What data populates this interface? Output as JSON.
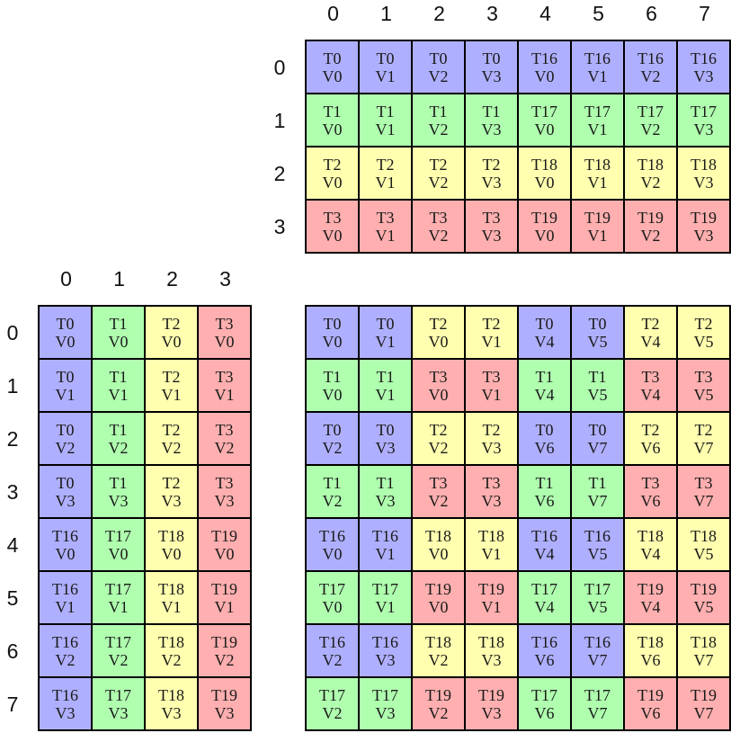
{
  "colors": {
    "blue": "#afafff",
    "green": "#afffaf",
    "yellow": "#ffffaf",
    "red": "#ffafaf",
    "border": "#000000",
    "cell_text": "#1a1a1a",
    "label_text": "#111111",
    "background": "#ffffff"
  },
  "grids": {
    "top_right": {
      "id": "top-right",
      "col_labels": [
        "0",
        "1",
        "2",
        "3",
        "4",
        "5",
        "6",
        "7"
      ],
      "row_labels": [
        "0",
        "1",
        "2",
        "3"
      ],
      "rows": [
        [
          {
            "t": "T0",
            "v": "V0",
            "c": "blue"
          },
          {
            "t": "T0",
            "v": "V1",
            "c": "blue"
          },
          {
            "t": "T0",
            "v": "V2",
            "c": "blue"
          },
          {
            "t": "T0",
            "v": "V3",
            "c": "blue"
          },
          {
            "t": "T16",
            "v": "V0",
            "c": "blue"
          },
          {
            "t": "T16",
            "v": "V1",
            "c": "blue"
          },
          {
            "t": "T16",
            "v": "V2",
            "c": "blue"
          },
          {
            "t": "T16",
            "v": "V3",
            "c": "blue"
          }
        ],
        [
          {
            "t": "T1",
            "v": "V0",
            "c": "green"
          },
          {
            "t": "T1",
            "v": "V1",
            "c": "green"
          },
          {
            "t": "T1",
            "v": "V2",
            "c": "green"
          },
          {
            "t": "T1",
            "v": "V3",
            "c": "green"
          },
          {
            "t": "T17",
            "v": "V0",
            "c": "green"
          },
          {
            "t": "T17",
            "v": "V1",
            "c": "green"
          },
          {
            "t": "T17",
            "v": "V2",
            "c": "green"
          },
          {
            "t": "T17",
            "v": "V3",
            "c": "green"
          }
        ],
        [
          {
            "t": "T2",
            "v": "V0",
            "c": "yellow"
          },
          {
            "t": "T2",
            "v": "V1",
            "c": "yellow"
          },
          {
            "t": "T2",
            "v": "V2",
            "c": "yellow"
          },
          {
            "t": "T2",
            "v": "V3",
            "c": "yellow"
          },
          {
            "t": "T18",
            "v": "V0",
            "c": "yellow"
          },
          {
            "t": "T18",
            "v": "V1",
            "c": "yellow"
          },
          {
            "t": "T18",
            "v": "V2",
            "c": "yellow"
          },
          {
            "t": "T18",
            "v": "V3",
            "c": "yellow"
          }
        ],
        [
          {
            "t": "T3",
            "v": "V0",
            "c": "red"
          },
          {
            "t": "T3",
            "v": "V1",
            "c": "red"
          },
          {
            "t": "T3",
            "v": "V2",
            "c": "red"
          },
          {
            "t": "T3",
            "v": "V3",
            "c": "red"
          },
          {
            "t": "T19",
            "v": "V0",
            "c": "red"
          },
          {
            "t": "T19",
            "v": "V1",
            "c": "red"
          },
          {
            "t": "T19",
            "v": "V2",
            "c": "red"
          },
          {
            "t": "T19",
            "v": "V3",
            "c": "red"
          }
        ]
      ]
    },
    "bottom_left": {
      "id": "bottom-left",
      "col_labels": [
        "0",
        "1",
        "2",
        "3"
      ],
      "row_labels": [
        "0",
        "1",
        "2",
        "3",
        "4",
        "5",
        "6",
        "7"
      ],
      "rows": [
        [
          {
            "t": "T0",
            "v": "V0",
            "c": "blue"
          },
          {
            "t": "T1",
            "v": "V0",
            "c": "green"
          },
          {
            "t": "T2",
            "v": "V0",
            "c": "yellow"
          },
          {
            "t": "T3",
            "v": "V0",
            "c": "red"
          }
        ],
        [
          {
            "t": "T0",
            "v": "V1",
            "c": "blue"
          },
          {
            "t": "T1",
            "v": "V1",
            "c": "green"
          },
          {
            "t": "T2",
            "v": "V1",
            "c": "yellow"
          },
          {
            "t": "T3",
            "v": "V1",
            "c": "red"
          }
        ],
        [
          {
            "t": "T0",
            "v": "V2",
            "c": "blue"
          },
          {
            "t": "T1",
            "v": "V2",
            "c": "green"
          },
          {
            "t": "T2",
            "v": "V2",
            "c": "yellow"
          },
          {
            "t": "T3",
            "v": "V2",
            "c": "red"
          }
        ],
        [
          {
            "t": "T0",
            "v": "V3",
            "c": "blue"
          },
          {
            "t": "T1",
            "v": "V3",
            "c": "green"
          },
          {
            "t": "T2",
            "v": "V3",
            "c": "yellow"
          },
          {
            "t": "T3",
            "v": "V3",
            "c": "red"
          }
        ],
        [
          {
            "t": "T16",
            "v": "V0",
            "c": "blue"
          },
          {
            "t": "T17",
            "v": "V0",
            "c": "green"
          },
          {
            "t": "T18",
            "v": "V0",
            "c": "yellow"
          },
          {
            "t": "T19",
            "v": "V0",
            "c": "red"
          }
        ],
        [
          {
            "t": "T16",
            "v": "V1",
            "c": "blue"
          },
          {
            "t": "T17",
            "v": "V1",
            "c": "green"
          },
          {
            "t": "T18",
            "v": "V1",
            "c": "yellow"
          },
          {
            "t": "T19",
            "v": "V1",
            "c": "red"
          }
        ],
        [
          {
            "t": "T16",
            "v": "V2",
            "c": "blue"
          },
          {
            "t": "T17",
            "v": "V2",
            "c": "green"
          },
          {
            "t": "T18",
            "v": "V2",
            "c": "yellow"
          },
          {
            "t": "T19",
            "v": "V2",
            "c": "red"
          }
        ],
        [
          {
            "t": "T16",
            "v": "V3",
            "c": "blue"
          },
          {
            "t": "T17",
            "v": "V3",
            "c": "green"
          },
          {
            "t": "T18",
            "v": "V3",
            "c": "yellow"
          },
          {
            "t": "T19",
            "v": "V3",
            "c": "red"
          }
        ]
      ]
    },
    "bottom_right": {
      "id": "bottom-right",
      "col_labels": [],
      "row_labels": [],
      "rows": [
        [
          {
            "t": "T0",
            "v": "V0",
            "c": "blue"
          },
          {
            "t": "T0",
            "v": "V1",
            "c": "blue"
          },
          {
            "t": "T2",
            "v": "V0",
            "c": "yellow"
          },
          {
            "t": "T2",
            "v": "V1",
            "c": "yellow"
          },
          {
            "t": "T0",
            "v": "V4",
            "c": "blue"
          },
          {
            "t": "T0",
            "v": "V5",
            "c": "blue"
          },
          {
            "t": "T2",
            "v": "V4",
            "c": "yellow"
          },
          {
            "t": "T2",
            "v": "V5",
            "c": "yellow"
          }
        ],
        [
          {
            "t": "T1",
            "v": "V0",
            "c": "green"
          },
          {
            "t": "T1",
            "v": "V1",
            "c": "green"
          },
          {
            "t": "T3",
            "v": "V0",
            "c": "red"
          },
          {
            "t": "T3",
            "v": "V1",
            "c": "red"
          },
          {
            "t": "T1",
            "v": "V4",
            "c": "green"
          },
          {
            "t": "T1",
            "v": "V5",
            "c": "green"
          },
          {
            "t": "T3",
            "v": "V4",
            "c": "red"
          },
          {
            "t": "T3",
            "v": "V5",
            "c": "red"
          }
        ],
        [
          {
            "t": "T0",
            "v": "V2",
            "c": "blue"
          },
          {
            "t": "T0",
            "v": "V3",
            "c": "blue"
          },
          {
            "t": "T2",
            "v": "V2",
            "c": "yellow"
          },
          {
            "t": "T2",
            "v": "V3",
            "c": "yellow"
          },
          {
            "t": "T0",
            "v": "V6",
            "c": "blue"
          },
          {
            "t": "T0",
            "v": "V7",
            "c": "blue"
          },
          {
            "t": "T2",
            "v": "V6",
            "c": "yellow"
          },
          {
            "t": "T2",
            "v": "V7",
            "c": "yellow"
          }
        ],
        [
          {
            "t": "T1",
            "v": "V2",
            "c": "green"
          },
          {
            "t": "T1",
            "v": "V3",
            "c": "green"
          },
          {
            "t": "T3",
            "v": "V2",
            "c": "red"
          },
          {
            "t": "T3",
            "v": "V3",
            "c": "red"
          },
          {
            "t": "T1",
            "v": "V6",
            "c": "green"
          },
          {
            "t": "T1",
            "v": "V7",
            "c": "green"
          },
          {
            "t": "T3",
            "v": "V6",
            "c": "red"
          },
          {
            "t": "T3",
            "v": "V7",
            "c": "red"
          }
        ],
        [
          {
            "t": "T16",
            "v": "V0",
            "c": "blue"
          },
          {
            "t": "T16",
            "v": "V1",
            "c": "blue"
          },
          {
            "t": "T18",
            "v": "V0",
            "c": "yellow"
          },
          {
            "t": "T18",
            "v": "V1",
            "c": "yellow"
          },
          {
            "t": "T16",
            "v": "V4",
            "c": "blue"
          },
          {
            "t": "T16",
            "v": "V5",
            "c": "blue"
          },
          {
            "t": "T18",
            "v": "V4",
            "c": "yellow"
          },
          {
            "t": "T18",
            "v": "V5",
            "c": "yellow"
          }
        ],
        [
          {
            "t": "T17",
            "v": "V0",
            "c": "green"
          },
          {
            "t": "T17",
            "v": "V1",
            "c": "green"
          },
          {
            "t": "T19",
            "v": "V0",
            "c": "red"
          },
          {
            "t": "T19",
            "v": "V1",
            "c": "red"
          },
          {
            "t": "T17",
            "v": "V4",
            "c": "green"
          },
          {
            "t": "T17",
            "v": "V5",
            "c": "green"
          },
          {
            "t": "T19",
            "v": "V4",
            "c": "red"
          },
          {
            "t": "T19",
            "v": "V5",
            "c": "red"
          }
        ],
        [
          {
            "t": "T16",
            "v": "V2",
            "c": "blue"
          },
          {
            "t": "T16",
            "v": "V3",
            "c": "blue"
          },
          {
            "t": "T18",
            "v": "V2",
            "c": "yellow"
          },
          {
            "t": "T18",
            "v": "V3",
            "c": "yellow"
          },
          {
            "t": "T16",
            "v": "V6",
            "c": "blue"
          },
          {
            "t": "T16",
            "v": "V7",
            "c": "blue"
          },
          {
            "t": "T18",
            "v": "V6",
            "c": "yellow"
          },
          {
            "t": "T18",
            "v": "V7",
            "c": "yellow"
          }
        ],
        [
          {
            "t": "T17",
            "v": "V2",
            "c": "green"
          },
          {
            "t": "T17",
            "v": "V3",
            "c": "green"
          },
          {
            "t": "T19",
            "v": "V2",
            "c": "red"
          },
          {
            "t": "T19",
            "v": "V3",
            "c": "red"
          },
          {
            "t": "T17",
            "v": "V6",
            "c": "green"
          },
          {
            "t": "T17",
            "v": "V7",
            "c": "green"
          },
          {
            "t": "T19",
            "v": "V6",
            "c": "red"
          },
          {
            "t": "T19",
            "v": "V7",
            "c": "red"
          }
        ]
      ]
    }
  }
}
